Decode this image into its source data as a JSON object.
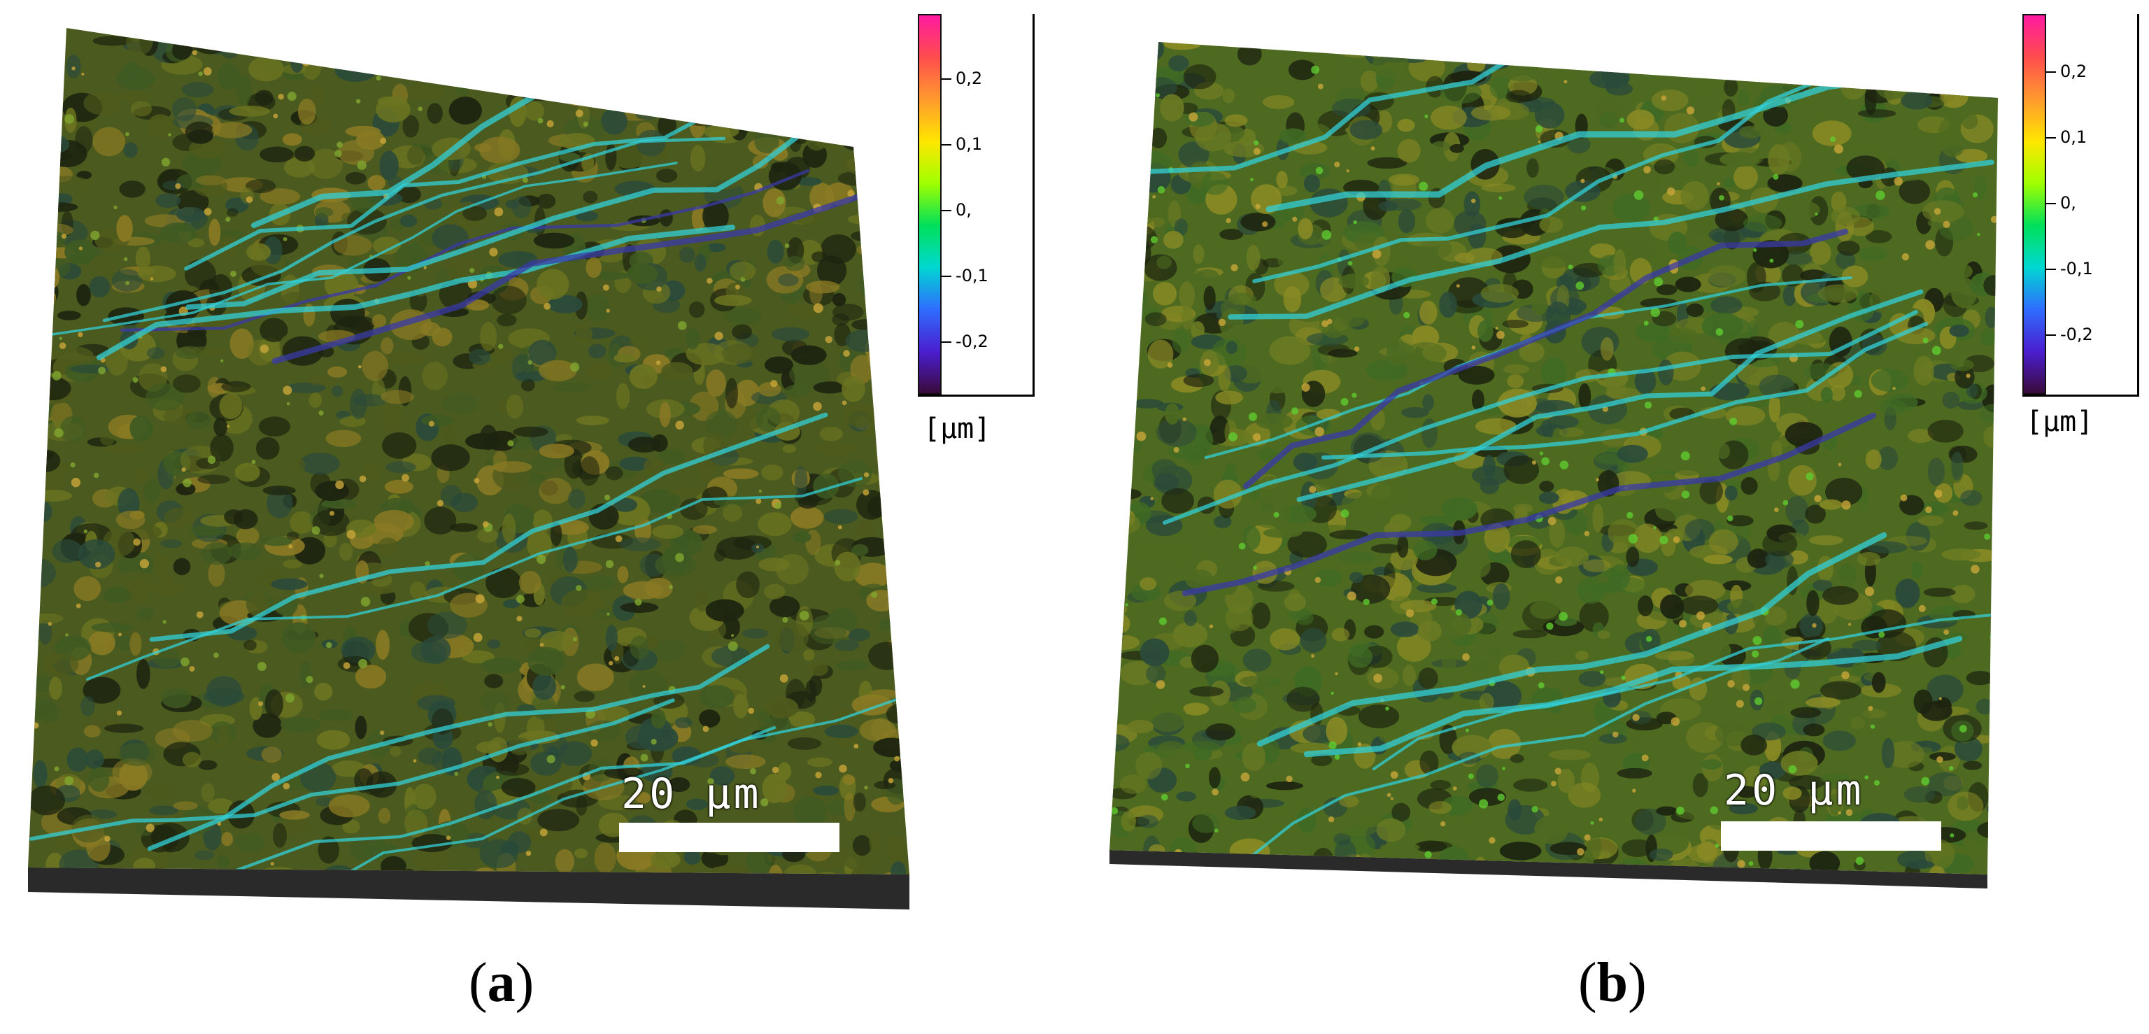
{
  "panels": [
    {
      "label": "a",
      "scale_bar_text": "20 µm",
      "colorbar": {
        "ticks": [
          "0,2",
          "0,1",
          "0,",
          "-0,1",
          "-0,2"
        ],
        "unit": "[µm]",
        "colors": [
          "#ff1aa0",
          "#ff4d4d",
          "#ff9a2e",
          "#ffe600",
          "#a0ff00",
          "#00e05a",
          "#00d8d0",
          "#2f6dff",
          "#4a1fd0",
          "#3a0a3a"
        ]
      },
      "surface_palette": [
        "#4e5a1c",
        "#6b7420",
        "#8a7a24",
        "#3f5a22",
        "#2a4a3a",
        "#33d0d8",
        "#3a3aa8",
        "#7fa630"
      ]
    },
    {
      "label": "b",
      "scale_bar_text": "20 µm",
      "colorbar": {
        "ticks": [
          "0,2",
          "0,1",
          "0,",
          "-0,1",
          "-0,2"
        ],
        "unit": "[µm]",
        "colors": [
          "#ff1aa0",
          "#ff4d4d",
          "#ff9a2e",
          "#ffe600",
          "#a0ff00",
          "#00e05a",
          "#00d8d0",
          "#2f6dff",
          "#4a1fd0",
          "#3a0a3a"
        ]
      },
      "surface_palette": [
        "#4e6a20",
        "#6b7a22",
        "#8a8a24",
        "#3f6a24",
        "#2a4a3a",
        "#33d0d8",
        "#3a3aa8",
        "#5fcc30"
      ]
    }
  ]
}
